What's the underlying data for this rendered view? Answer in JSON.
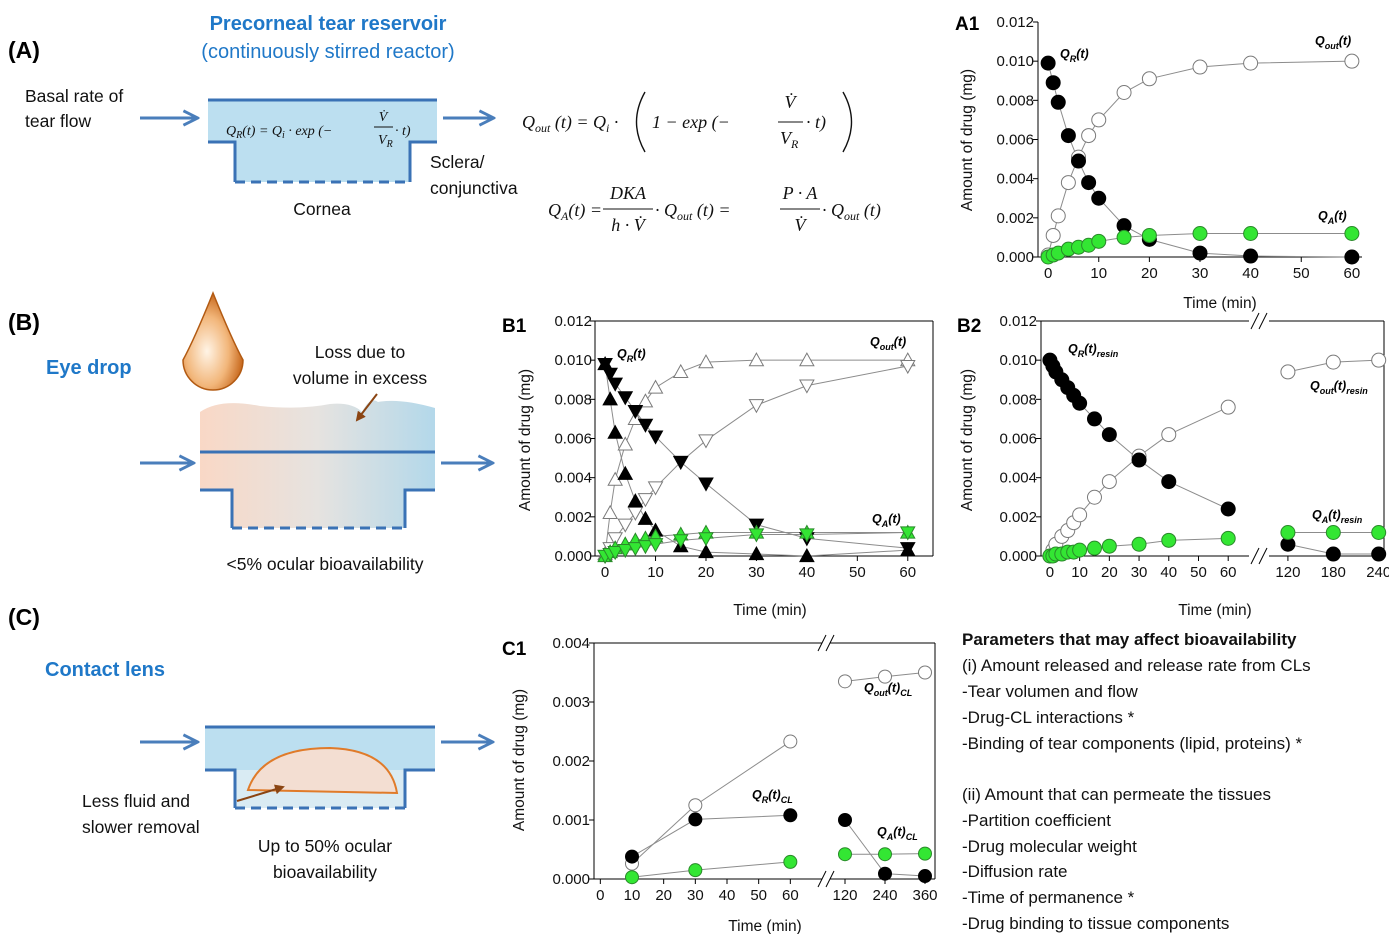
{
  "panels": {
    "A": {
      "label": "(A)",
      "title": "Precorneal tear reservoir",
      "subtitle": "(continuously stirred reactor)",
      "inflow": [
        "Basal rate of",
        "tear flow"
      ],
      "cornea": "Cornea",
      "sclera": [
        "Sclera/",
        "conjunctiva"
      ]
    },
    "B": {
      "label": "(B)",
      "title": "Eye drop",
      "loss": [
        "Loss due to",
        "volume in excess"
      ],
      "note": "<5% ocular bioavailability"
    },
    "C": {
      "label": "(C)",
      "title": "Contact lens",
      "lens": [
        "Less fluid and",
        "slower removal"
      ],
      "note": [
        "Up to 50% ocular",
        "bioavailability"
      ]
    }
  },
  "equations": {
    "q_r": [
      "Q",
      "R",
      "(t) = ",
      "Q",
      "i",
      " · exp (−",
      "V̇",
      "V",
      "R",
      " · t)"
    ],
    "q_out": [
      "Q",
      "out",
      " (t) = ",
      "Q",
      "i",
      " · ",
      "1 − exp (−",
      "V̇",
      "V",
      "R",
      " · t)"
    ],
    "q_a": [
      "Q",
      "A",
      "(t) = ",
      "DKA",
      "h · V̇",
      " · ",
      "Q",
      "out",
      " (t) = ",
      "P · A",
      "V̇",
      " · ",
      "Q",
      "out",
      " (t)"
    ]
  },
  "parameters": {
    "title": "Parameters that may affect bioavailability",
    "group_i": [
      "(i) Amount released and release rate from CLs",
      "-Tear volumen and flow",
      "-Drug-CL interactions *",
      "-Binding of tear components (lipid, proteins) *"
    ],
    "group_ii": [
      "(ii) Amount that can permeate the tissues",
      "-Partition coefficient",
      "-Drug molecular weight",
      "-Diffusion rate",
      "-Time of permanence *",
      "-Drug binding to tissue components"
    ]
  },
  "chart_data": [
    {
      "type": "line",
      "panel_label": "A1",
      "xlabel": "Time (min)",
      "ylabel": "Amount of drug (mg)",
      "frame": false,
      "line_color": "#8c8c8c",
      "ylim": [
        0,
        0.012
      ],
      "yticks": [
        {
          "value": 0,
          "label": "0.000"
        },
        0.002,
        0.004,
        0.006,
        0.008,
        {
          "value": 0.01,
          "label": "0.010"
        },
        0.012
      ],
      "x_axes": [
        {
          "xlim": [
            -2,
            62
          ],
          "xticks": [
            0,
            10,
            20,
            30,
            40,
            50,
            60
          ]
        }
      ],
      "x": [
        0,
        1,
        2,
        4,
        6,
        8,
        10,
        15,
        20,
        30,
        40,
        60
      ],
      "series": [
        {
          "marker": "circle",
          "color": "#ffffff",
          "edge": "#7a7a7a",
          "values": [
            0.0001,
            0.0011,
            0.0021,
            0.0038,
            0.0051,
            0.0062,
            0.007,
            0.0084,
            0.0091,
            0.0097,
            0.0099,
            0.01
          ]
        },
        {
          "marker": "circle",
          "color": "#000000",
          "edge": "#000000",
          "values": [
            0.0099,
            0.0089,
            0.0079,
            0.0062,
            0.0049,
            0.0038,
            0.003,
            0.0016,
            0.0009,
            0.0002,
            5e-05,
            0
          ]
        },
        {
          "marker": "circle",
          "color": "#33e633",
          "edge": "#2a8a2a",
          "values": [
            0,
            0.0001,
            0.0002,
            0.0004,
            0.0005,
            0.0006,
            0.0008,
            0.001,
            0.0011,
            0.0012,
            0.0012,
            0.0012
          ]
        }
      ],
      "labels": [
        [
          {
            "t": "Q"
          },
          {
            "t": "R",
            "sub": true
          },
          {
            "t": "(t)"
          }
        ],
        [
          {
            "t": "Q"
          },
          {
            "t": "out",
            "sub": true
          },
          {
            "t": "(t)"
          }
        ],
        [
          {
            "t": "Q"
          },
          {
            "t": "A",
            "sub": true
          },
          {
            "t": "(t)"
          }
        ]
      ]
    },
    {
      "type": "line",
      "panel_label": "B1",
      "xlabel": "Time (min)",
      "ylabel": "Amount of drug (mg)",
      "frame": true,
      "line_color": "#8c8c8c",
      "ylim": [
        0,
        0.012
      ],
      "yticks": [
        {
          "value": 0,
          "label": "0.000"
        },
        0.002,
        0.004,
        0.006,
        0.008,
        {
          "value": 0.01,
          "label": "0.010"
        },
        0.012
      ],
      "x_axes": [
        {
          "xlim": [
            -2,
            65
          ],
          "xticks": [
            0,
            10,
            20,
            30,
            40,
            50,
            60
          ]
        }
      ],
      "x": [
        0,
        1,
        2,
        4,
        6,
        8,
        10,
        15,
        20,
        30,
        40,
        60
      ],
      "series": [
        {
          "marker": "triangle-up",
          "color": "#ffffff",
          "edge": "#7a7a7a",
          "values": [
            0.0001,
            0.0022,
            0.0039,
            0.0057,
            0.007,
            0.0079,
            0.0086,
            0.0094,
            0.0099,
            0.01,
            0.01,
            0.01
          ]
        },
        {
          "marker": "triangle-down",
          "color": "#ffffff",
          "edge": "#7a7a7a",
          "values": [
            0,
            0.0004,
            0.0009,
            0.0016,
            0.0022,
            0.0029,
            0.0035,
            0.0048,
            0.0059,
            0.0077,
            0.0087,
            0.0097
          ]
        },
        {
          "marker": "triangle-up",
          "color": "#000000",
          "edge": "#000000",
          "values": [
            0.0098,
            0.008,
            0.0063,
            0.0042,
            0.0028,
            0.0019,
            0.0013,
            0.0005,
            0.0002,
            0.0001,
            0,
            0.0003
          ]
        },
        {
          "marker": "triangle-down",
          "color": "#000000",
          "edge": "#000000",
          "values": [
            0.0098,
            0.0093,
            0.0088,
            0.0081,
            0.0074,
            0.0067,
            0.0061,
            0.0048,
            0.0037,
            0.0016,
            0.0009,
            0.0004
          ]
        },
        {
          "marker": "triangle-up",
          "color": "#33e633",
          "edge": "#2a8a2a",
          "values": [
            0,
            0.0002,
            0.0004,
            0.0006,
            0.0008,
            0.0009,
            0.001,
            0.0011,
            0.0012,
            0.0012,
            0.0012,
            0.0012
          ]
        },
        {
          "marker": "triangle-down",
          "color": "#33e633",
          "edge": "#2a8a2a",
          "values": [
            0,
            0.0001,
            0.0002,
            0.0003,
            0.0004,
            0.0005,
            0.0006,
            0.0008,
            0.0009,
            0.0011,
            0.0011,
            0.0012
          ]
        }
      ],
      "labels": [
        [
          {
            "t": "Q"
          },
          {
            "t": "R",
            "sub": true
          },
          {
            "t": "(t)"
          }
        ],
        [
          {
            "t": "Q"
          },
          {
            "t": "out",
            "sub": true
          },
          {
            "t": "(t)"
          }
        ],
        [
          {
            "t": "Q"
          },
          {
            "t": "A",
            "sub": true
          },
          {
            "t": "(t)"
          }
        ]
      ]
    },
    {
      "type": "line",
      "panel_label": "B2",
      "xlabel": "Time (min)",
      "ylabel": "Amount of drug (mg)",
      "frame": true,
      "line_color": "#8c8c8c",
      "ylim": [
        0,
        0.012
      ],
      "yticks": [
        {
          "value": 0,
          "label": "0.000"
        },
        0.002,
        0.004,
        0.006,
        0.008,
        {
          "value": 0.01,
          "label": "0.010"
        },
        0.012
      ],
      "x_axes": [
        {
          "xlim": [
            -3,
            67
          ],
          "xticks": [
            0,
            10,
            20,
            30,
            40,
            50,
            60
          ]
        },
        {
          "xlim": [
            95,
            247
          ],
          "xticks": [
            120,
            180,
            240
          ]
        }
      ],
      "x": [
        0,
        1,
        2,
        4,
        6,
        8,
        10,
        15,
        20,
        30,
        40,
        60,
        120,
        180,
        240
      ],
      "series": [
        {
          "marker": "circle",
          "color": "#ffffff",
          "edge": "#7a7a7a",
          "values": [
            0,
            0.0003,
            0.0006,
            0.001,
            0.0013,
            0.0017,
            0.0021,
            0.003,
            0.0038,
            0.0051,
            0.0062,
            0.0076,
            0.0094,
            0.0099,
            0.01
          ]
        },
        {
          "marker": "circle",
          "color": "#000000",
          "edge": "#000000",
          "values": [
            0.01,
            0.0097,
            0.0094,
            0.009,
            0.0086,
            0.0082,
            0.0078,
            0.007,
            0.0062,
            0.0049,
            0.0038,
            0.0024,
            0.0006,
            0.0001,
            0.0001
          ]
        },
        {
          "marker": "circle",
          "color": "#33e633",
          "edge": "#2a8a2a",
          "values": [
            0,
            0,
            0.0001,
            0.0001,
            0.0002,
            0.0002,
            0.0003,
            0.0004,
            0.0005,
            0.0006,
            0.0008,
            0.0009,
            0.0012,
            0.0012,
            0.0012
          ]
        }
      ],
      "labels": [
        [
          {
            "t": "Q"
          },
          {
            "t": "R",
            "sub": true
          },
          {
            "t": "(t)"
          },
          {
            "t": "resin",
            "sub": true
          }
        ],
        [
          {
            "t": "Q"
          },
          {
            "t": "out",
            "sub": true
          },
          {
            "t": "(t)"
          },
          {
            "t": "resin",
            "sub": true
          }
        ],
        [
          {
            "t": "Q"
          },
          {
            "t": "A",
            "sub": true
          },
          {
            "t": "(t)"
          },
          {
            "t": "resin",
            "sub": true
          }
        ]
      ]
    },
    {
      "type": "line",
      "panel_label": "C1",
      "xlabel": "Time (min)",
      "ylabel": "Amount of drug (mg)",
      "frame": true,
      "line_color": "#8c8c8c",
      "ylim": [
        0,
        0.004
      ],
      "yticks": [
        {
          "value": 0,
          "label": "0.000"
        },
        0.001,
        0.002,
        0.003,
        0.004
      ],
      "x_axes": [
        {
          "xlim": [
            -2,
            70
          ],
          "xticks": [
            0,
            10,
            20,
            30,
            40,
            50,
            60
          ]
        },
        {
          "xlim": [
            75,
            390
          ],
          "xticks": [
            120,
            240,
            360
          ]
        }
      ],
      "x": [
        10,
        30,
        60,
        120,
        240,
        360
      ],
      "series": [
        {
          "marker": "circle",
          "color": "#ffffff",
          "edge": "#7a7a7a",
          "values": [
            0.00026,
            0.00125,
            0.00233,
            0.00335,
            0.00343,
            0.0035
          ]
        },
        {
          "marker": "circle",
          "color": "#000000",
          "edge": "#000000",
          "values": [
            0.00038,
            0.00101,
            0.00108,
            0.001,
            9e-05,
            5e-05
          ]
        },
        {
          "marker": "circle",
          "color": "#33e633",
          "edge": "#2a8a2a",
          "values": [
            3e-05,
            0.00015,
            0.00029,
            0.00042,
            0.00042,
            0.00043
          ]
        }
      ],
      "labels": [
        [
          {
            "t": "Q"
          },
          {
            "t": "out",
            "sub": true
          },
          {
            "t": "(t)"
          },
          {
            "t": "CL",
            "sub": true
          }
        ],
        [
          {
            "t": "Q"
          },
          {
            "t": "R",
            "sub": true
          },
          {
            "t": "(t)"
          },
          {
            "t": "CL",
            "sub": true
          }
        ],
        [
          {
            "t": "Q"
          },
          {
            "t": "A",
            "sub": true
          },
          {
            "t": "(t)"
          },
          {
            "t": "CL",
            "sub": true
          }
        ]
      ]
    }
  ]
}
